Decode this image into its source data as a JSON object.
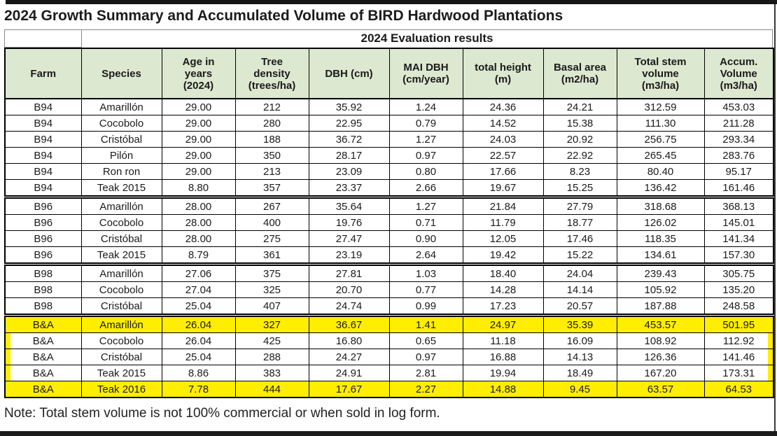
{
  "title": "2024 Growth Summary and Accumulated Volume of BIRD Hardwood Plantations",
  "note": "Note: Total stem volume is not 100% commercial or when sold in log form.",
  "colors": {
    "header_green": "#dce8d0",
    "highlight_yellow": "#ffee00"
  },
  "table": {
    "span_header": "2024 Evaluation results",
    "columns": [
      "Farm",
      "Species",
      "Age in\nyears\n(2024)",
      "Tree\ndensity\n(trees/ha)",
      "DBH (cm)",
      "MAI DBH\n(cm/year)",
      "total height\n(m)",
      "Basal area\n(m2/ha)",
      "Total stem\nvolume\n(m3/ha)",
      "Accum.\nVolume\n(m3/ha)"
    ],
    "groups": [
      {
        "farm": "B94",
        "highlight_rows": [],
        "outline": false,
        "rows": [
          [
            "B94",
            "Amarillón",
            "29.00",
            "212",
            "35.92",
            "1.24",
            "24.36",
            "24.21",
            "312.59",
            "453.03"
          ],
          [
            "B94",
            "Cocobolo",
            "29.00",
            "280",
            "22.95",
            "0.79",
            "14.52",
            "15.38",
            "111.30",
            "211.28"
          ],
          [
            "B94",
            "Cristóbal",
            "29.00",
            "188",
            "36.72",
            "1.27",
            "24.03",
            "20.92",
            "256.75",
            "293.34"
          ],
          [
            "B94",
            "Pilón",
            "29.00",
            "350",
            "28.17",
            "0.97",
            "22.57",
            "22.92",
            "265.45",
            "283.76"
          ],
          [
            "B94",
            "Ron ron",
            "29.00",
            "213",
            "23.09",
            "0.80",
            "17.66",
            "8.23",
            "80.40",
            "95.17"
          ],
          [
            "B94",
            "Teak 2015",
            "8.80",
            "357",
            "23.37",
            "2.66",
            "19.67",
            "15.25",
            "136.42",
            "161.46"
          ]
        ]
      },
      {
        "farm": "B96",
        "highlight_rows": [],
        "outline": false,
        "rows": [
          [
            "B96",
            "Amarillón",
            "28.00",
            "267",
            "35.64",
            "1.27",
            "21.84",
            "27.79",
            "318.68",
            "368.13"
          ],
          [
            "B96",
            "Cocobolo",
            "28.00",
            "400",
            "19.76",
            "0.71",
            "11.79",
            "18.77",
            "126.02",
            "145.01"
          ],
          [
            "B96",
            "Cristóbal",
            "28.00",
            "275",
            "27.47",
            "0.90",
            "12.05",
            "17.46",
            "118.35",
            "141.34"
          ],
          [
            "B96",
            "Teak 2015",
            "8.79",
            "361",
            "23.19",
            "2.64",
            "19.42",
            "15.22",
            "134.61",
            "157.30"
          ]
        ]
      },
      {
        "farm": "B98",
        "highlight_rows": [],
        "outline": false,
        "rows": [
          [
            "B98",
            "Amarillón",
            "27.06",
            "375",
            "27.81",
            "1.03",
            "18.40",
            "24.04",
            "239.43",
            "305.75"
          ],
          [
            "B98",
            "Cocobolo",
            "27.04",
            "325",
            "20.70",
            "0.77",
            "14.28",
            "14.14",
            "105.92",
            "135.20"
          ],
          [
            "B98",
            "Cristóbal",
            "25.04",
            "407",
            "24.74",
            "0.99",
            "17.23",
            "20.57",
            "187.88",
            "248.58"
          ]
        ]
      },
      {
        "farm": "B&A",
        "highlight_rows": [
          0,
          4
        ],
        "outline": true,
        "rows": [
          [
            "B&A",
            "Amarillón",
            "26.04",
            "327",
            "36.67",
            "1.41",
            "24.97",
            "35.39",
            "453.57",
            "501.95"
          ],
          [
            "B&A",
            "Cocobolo",
            "26.04",
            "425",
            "16.80",
            "0.65",
            "11.18",
            "16.09",
            "108.92",
            "112.92"
          ],
          [
            "B&A",
            "Cristóbal",
            "25.04",
            "288",
            "24.27",
            "0.97",
            "16.88",
            "14.13",
            "126.36",
            "141.46"
          ],
          [
            "B&A",
            "Teak 2015",
            "8.86",
            "383",
            "24.91",
            "2.81",
            "19.94",
            "18.49",
            "167.20",
            "173.31"
          ],
          [
            "B&A",
            "Teak 2016",
            "7.78",
            "444",
            "17.67",
            "2.27",
            "14.88",
            "9.45",
            "63.57",
            "64.53"
          ]
        ]
      }
    ]
  }
}
